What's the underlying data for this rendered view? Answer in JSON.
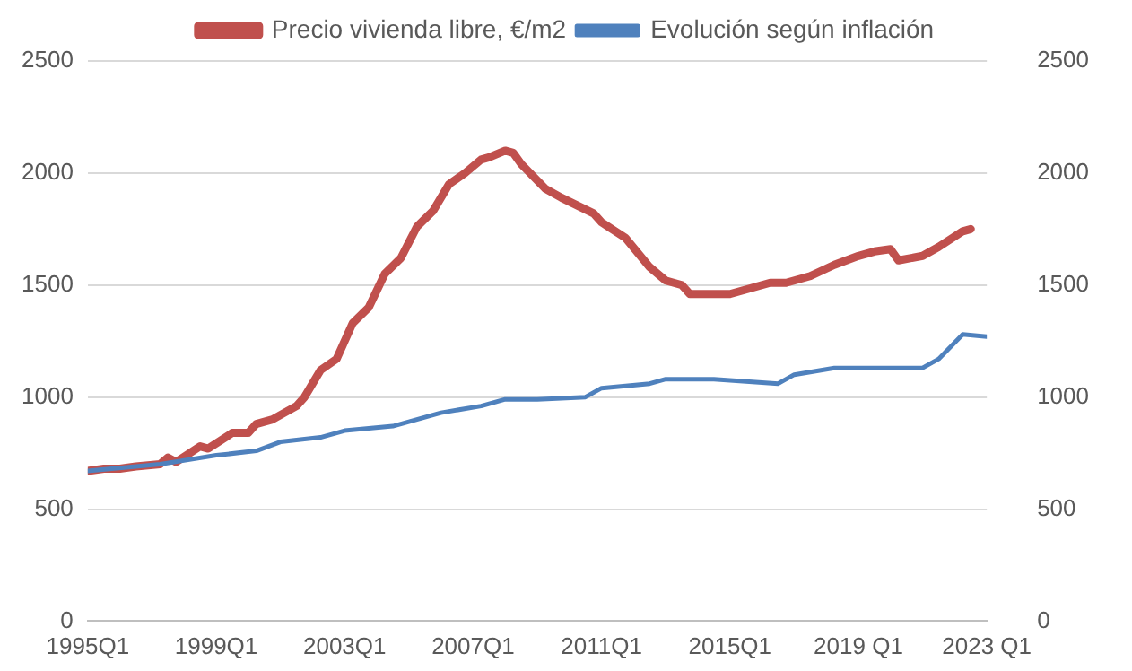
{
  "chart_data": {
    "type": "line",
    "legend": "top",
    "grid": "y",
    "marker": "none",
    "line_style": "solid",
    "xlim": [
      "1995-01",
      "2023-01"
    ],
    "xticks": [
      {
        "value": "1995-01",
        "label": "1995Q1"
      },
      {
        "value": "1999-01",
        "label": "1999Q1"
      },
      {
        "value": "2003-01",
        "label": "2003Q1"
      },
      {
        "value": "2007-01",
        "label": "2007Q1"
      },
      {
        "value": "2011-01",
        "label": "2011Q1"
      },
      {
        "value": "2015-01",
        "label": "2015Q1"
      },
      {
        "value": "2019-01",
        "label": "2019 Q1"
      },
      {
        "value": "2023-01",
        "label": "2023 Q1"
      }
    ],
    "ylim": [
      0,
      2500
    ],
    "yticks": [
      0,
      500,
      1000,
      1500,
      2000,
      2500
    ],
    "y2lim": [
      0,
      2500
    ],
    "y2ticks": [
      0,
      500,
      1000,
      1500,
      2000,
      2500
    ],
    "series": [
      {
        "name": "Precio vivienda libre, €/m2",
        "color": "#c0504d",
        "x": [
          "1995-01",
          "1995-07",
          "1996-01",
          "1996-07",
          "1997-04",
          "1997-07",
          "1997-10",
          "1998-07",
          "1998-10",
          "1999-07",
          "2000-01",
          "2000-04",
          "2000-10",
          "2001-07",
          "2001-10",
          "2002-04",
          "2002-10",
          "2003-04",
          "2003-10",
          "2004-04",
          "2004-10",
          "2005-04",
          "2005-10",
          "2006-04",
          "2006-10",
          "2007-04",
          "2007-07",
          "2008-01",
          "2008-04",
          "2008-07",
          "2009-04",
          "2009-10",
          "2010-10",
          "2011-01",
          "2011-10",
          "2012-07",
          "2013-01",
          "2013-07",
          "2013-10",
          "2014-07",
          "2015-01",
          "2015-07",
          "2016-04",
          "2016-10",
          "2017-07",
          "2018-04",
          "2019-01",
          "2019-07",
          "2020-01",
          "2020-04",
          "2021-01",
          "2021-07",
          "2022-04",
          "2022-07"
        ],
        "values": [
          670,
          680,
          680,
          690,
          700,
          730,
          710,
          780,
          770,
          840,
          840,
          880,
          900,
          960,
          1000,
          1120,
          1170,
          1330,
          1400,
          1550,
          1620,
          1760,
          1830,
          1950,
          2000,
          2060,
          2070,
          2100,
          2090,
          2040,
          1930,
          1890,
          1820,
          1780,
          1710,
          1580,
          1520,
          1500,
          1460,
          1460,
          1460,
          1480,
          1510,
          1510,
          1540,
          1590,
          1630,
          1650,
          1660,
          1610,
          1630,
          1670,
          1740,
          1750
        ]
      },
      {
        "name": "Evolución según inflación",
        "color": "#4f81bd",
        "x": [
          "1995-01",
          "1997-04",
          "1999-01",
          "2000-04",
          "2001-01",
          "2002-04",
          "2003-01",
          "2004-07",
          "2005-01",
          "2006-01",
          "2007-04",
          "2008-01",
          "2009-01",
          "2010-07",
          "2011-01",
          "2012-07",
          "2013-01",
          "2014-07",
          "2016-07",
          "2017-01",
          "2018-04",
          "2019-10",
          "2021-01",
          "2021-07",
          "2022-04",
          "2023-01"
        ],
        "values": [
          670,
          700,
          740,
          760,
          800,
          820,
          850,
          870,
          890,
          930,
          960,
          990,
          990,
          1000,
          1040,
          1060,
          1080,
          1080,
          1060,
          1100,
          1130,
          1130,
          1130,
          1170,
          1280,
          1270
        ]
      }
    ]
  }
}
